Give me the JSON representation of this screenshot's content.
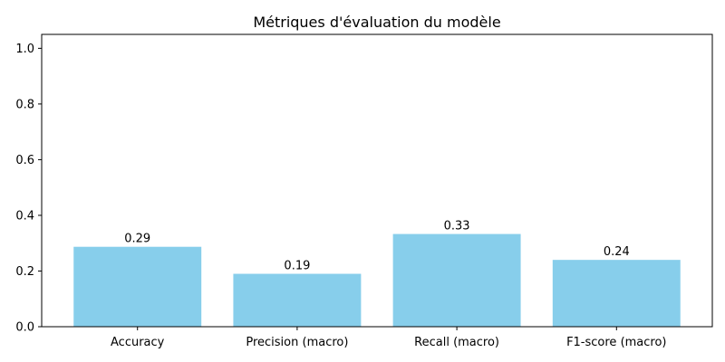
{
  "chart_data": {
    "type": "bar",
    "title": "Métriques d'évaluation du modèle",
    "xlabel": "",
    "ylabel": "",
    "categories": [
      "Accuracy",
      "Precision (macro)",
      "Recall (macro)",
      "F1-score (macro)"
    ],
    "values": [
      0.287,
      0.19,
      0.333,
      0.24
    ],
    "value_labels": [
      "0.29",
      "0.19",
      "0.33",
      "0.24"
    ],
    "ylim": [
      0,
      1.05
    ],
    "yticks": [
      0.0,
      0.2,
      0.4,
      0.6,
      0.8,
      1.0
    ],
    "ytick_labels": [
      "0.0",
      "0.2",
      "0.4",
      "0.6",
      "0.8",
      "1.0"
    ],
    "bar_color": "#87ceeb",
    "grid": false,
    "legend": "none"
  }
}
